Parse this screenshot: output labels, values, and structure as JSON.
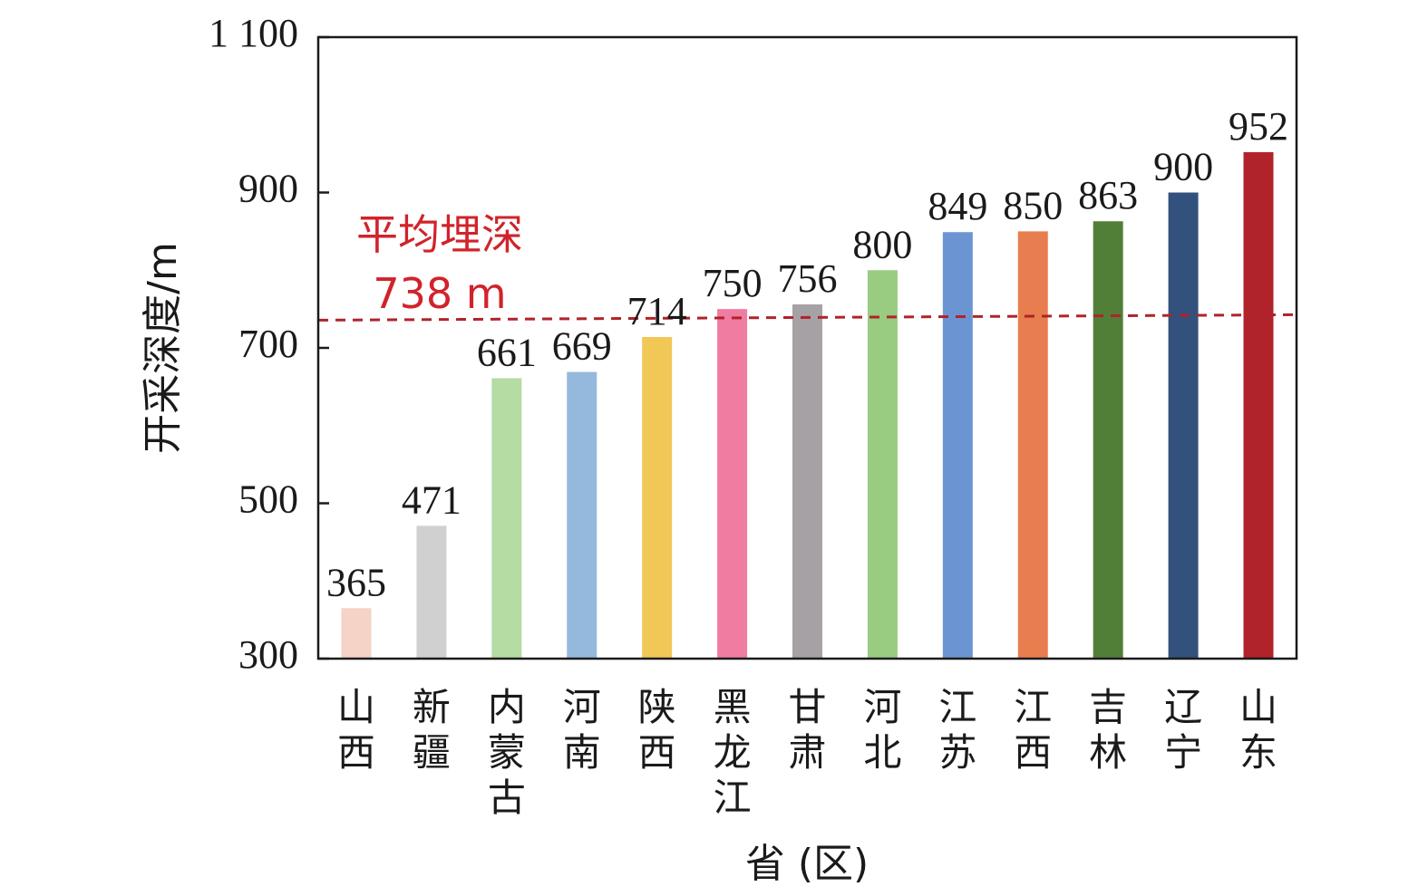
{
  "chart_data": {
    "type": "bar",
    "ylabel": "开采深度/m",
    "xlabel": "省 (区)",
    "ylim": [
      300,
      1100
    ],
    "yticks": [
      300,
      500,
      700,
      900,
      1100
    ],
    "ytick_labels": [
      "300",
      "500",
      "700",
      "900",
      "1 100"
    ],
    "categories": [
      "山西",
      "新疆",
      "内蒙古",
      "河南",
      "陕西",
      "黑龙江",
      "甘肃",
      "河北",
      "江苏",
      "江西",
      "吉林",
      "辽宁",
      "山东"
    ],
    "values": [
      365,
      471,
      661,
      669,
      714,
      750,
      756,
      800,
      849,
      850,
      863,
      900,
      952
    ],
    "colors": [
      "#f5d3c6",
      "#d0d0d0",
      "#b5dca3",
      "#94b9dc",
      "#f1c756",
      "#f17ca1",
      "#a6a1a4",
      "#99cc80",
      "#6b95d2",
      "#e87e4f",
      "#527f37",
      "#33517d",
      "#b0232a"
    ],
    "average": {
      "label": "平均埋深",
      "value_label": "738 m",
      "value": 738,
      "color": "#b0232a",
      "text_color": "#d1232a"
    },
    "grid": false,
    "legend": "none"
  }
}
